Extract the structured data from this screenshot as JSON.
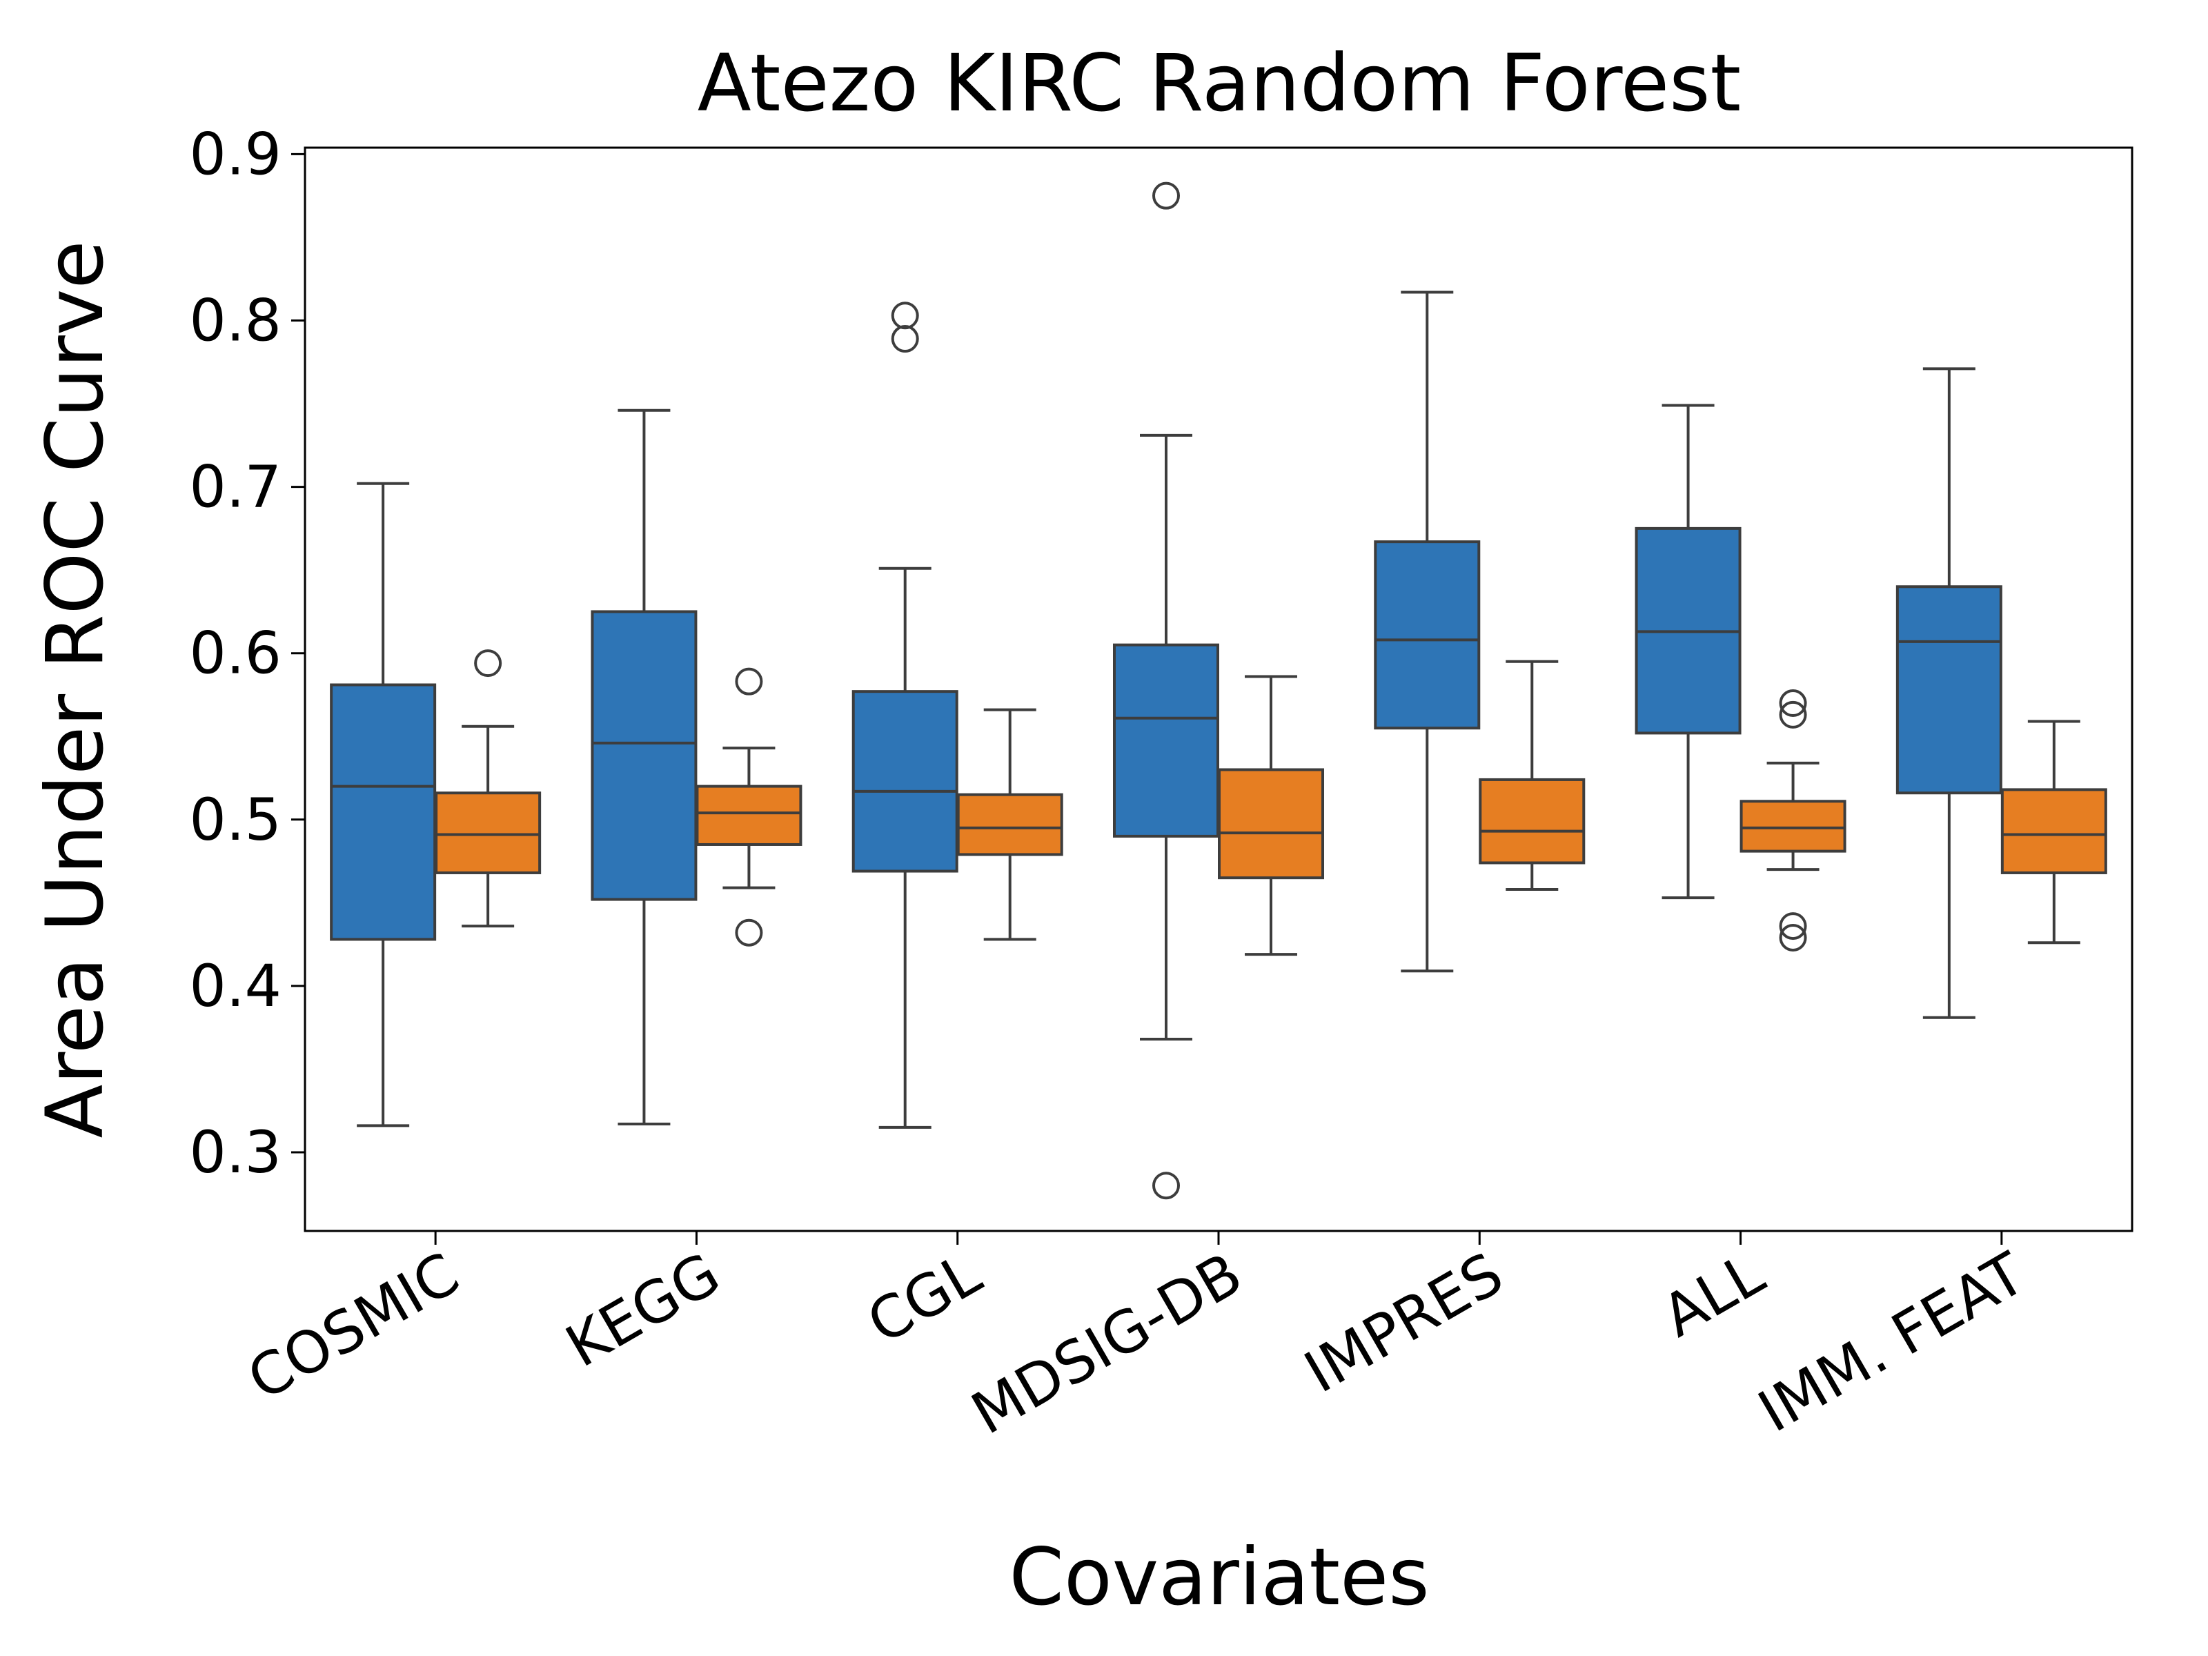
{
  "chart_data": {
    "type": "box",
    "title": "Atezo  KIRC  Random Forest",
    "xlabel": "Covariates",
    "ylabel": "Area Under ROC Curve",
    "ylim": [
      0.25,
      0.9
    ],
    "yticks": [
      "0.3",
      "0.4",
      "0.5",
      "0.6",
      "0.7",
      "0.8",
      "0.9"
    ],
    "grid": false,
    "legend": "none",
    "categories": [
      "COSMIC",
      "KEGG",
      "CGL",
      "MDSIG-DB",
      "IMPRES",
      "ALL",
      "IMM. FEAT"
    ],
    "series": [
      {
        "color": "#2e75b6",
        "boxes": [
          {
            "whislo": 0.316,
            "q1": 0.428,
            "med": 0.52,
            "q3": 0.581,
            "whishi": 0.702,
            "fliers": []
          },
          {
            "whislo": 0.317,
            "q1": 0.452,
            "med": 0.546,
            "q3": 0.625,
            "whishi": 0.746,
            "fliers": []
          },
          {
            "whislo": 0.315,
            "q1": 0.469,
            "med": 0.517,
            "q3": 0.577,
            "whishi": 0.651,
            "fliers": [
              0.803,
              0.789
            ]
          },
          {
            "whislo": 0.368,
            "q1": 0.49,
            "med": 0.561,
            "q3": 0.605,
            "whishi": 0.731,
            "fliers": [
              0.875,
              0.28
            ]
          },
          {
            "whislo": 0.409,
            "q1": 0.555,
            "med": 0.608,
            "q3": 0.667,
            "whishi": 0.817,
            "fliers": []
          },
          {
            "whislo": 0.453,
            "q1": 0.552,
            "med": 0.613,
            "q3": 0.675,
            "whishi": 0.749,
            "fliers": []
          },
          {
            "whislo": 0.381,
            "q1": 0.516,
            "med": 0.607,
            "q3": 0.64,
            "whishi": 0.771,
            "fliers": []
          }
        ]
      },
      {
        "color": "#e67e22",
        "boxes": [
          {
            "whislo": 0.436,
            "q1": 0.468,
            "med": 0.491,
            "q3": 0.516,
            "whishi": 0.556,
            "fliers": [
              0.594
            ]
          },
          {
            "whislo": 0.459,
            "q1": 0.485,
            "med": 0.504,
            "q3": 0.52,
            "whishi": 0.543,
            "fliers": [
              0.583,
              0.432
            ]
          },
          {
            "whislo": 0.428,
            "q1": 0.479,
            "med": 0.495,
            "q3": 0.515,
            "whishi": 0.566,
            "fliers": []
          },
          {
            "whislo": 0.419,
            "q1": 0.465,
            "med": 0.492,
            "q3": 0.53,
            "whishi": 0.586,
            "fliers": []
          },
          {
            "whislo": 0.458,
            "q1": 0.474,
            "med": 0.493,
            "q3": 0.524,
            "whishi": 0.595,
            "fliers": []
          },
          {
            "whislo": 0.47,
            "q1": 0.481,
            "med": 0.495,
            "q3": 0.511,
            "whishi": 0.534,
            "fliers": [
              0.57,
              0.563,
              0.436,
              0.429
            ]
          },
          {
            "whislo": 0.426,
            "q1": 0.468,
            "med": 0.491,
            "q3": 0.518,
            "whishi": 0.559,
            "fliers": []
          }
        ]
      }
    ],
    "edge_color": "#3d3d3d"
  }
}
